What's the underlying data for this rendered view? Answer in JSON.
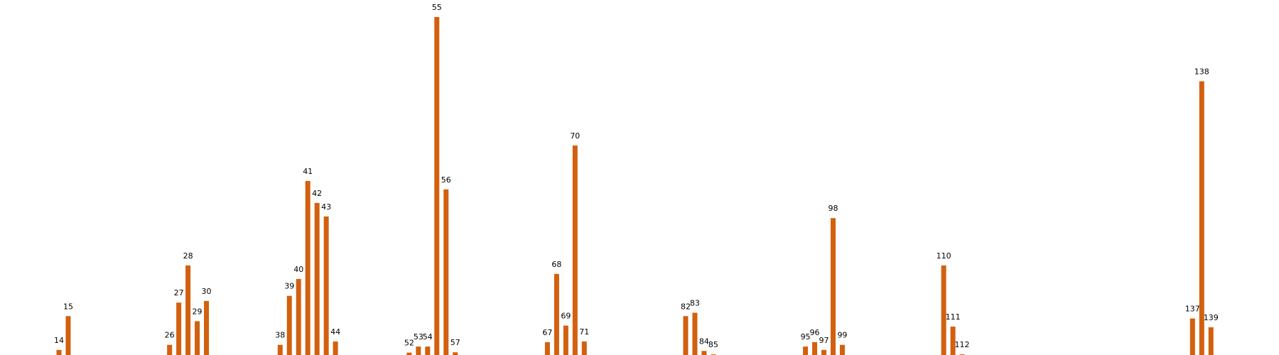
{
  "chart_data": {
    "type": "bar",
    "title": "",
    "xlabel": "",
    "ylabel": "",
    "axes_visible": false,
    "grid": false,
    "bar_color": "#d2600e",
    "ylim": [
      0,
      100
    ],
    "bars": [
      {
        "label": "14",
        "value": 1.5
      },
      {
        "label": "15",
        "value": 11.5
      },
      {
        "label": "26",
        "value": 3.0
      },
      {
        "label": "27",
        "value": 15.5
      },
      {
        "label": "28",
        "value": 26.5
      },
      {
        "label": "29",
        "value": 10.0
      },
      {
        "label": "30",
        "value": 16.0
      },
      {
        "label": "38",
        "value": 3.0
      },
      {
        "label": "39",
        "value": 17.5
      },
      {
        "label": "40",
        "value": 22.5
      },
      {
        "label": "41",
        "value": 51.5
      },
      {
        "label": "42",
        "value": 45.0
      },
      {
        "label": "43",
        "value": 41.0
      },
      {
        "label": "44",
        "value": 4.0
      },
      {
        "label": "52",
        "value": 0.7
      },
      {
        "label": "53",
        "value": 2.5
      },
      {
        "label": "54",
        "value": 2.5
      },
      {
        "label": "55",
        "value": 100.0
      },
      {
        "label": "56",
        "value": 49.0
      },
      {
        "label": "57",
        "value": 0.8
      },
      {
        "label": "67",
        "value": 3.8
      },
      {
        "label": "68",
        "value": 24.0
      },
      {
        "label": "69",
        "value": 8.7
      },
      {
        "label": "70",
        "value": 62.0
      },
      {
        "label": "71",
        "value": 4.0
      },
      {
        "label": "82",
        "value": 11.5
      },
      {
        "label": "83",
        "value": 12.5
      },
      {
        "label": "84",
        "value": 1.2
      },
      {
        "label": "85",
        "value": 0.2
      },
      {
        "label": "95",
        "value": 2.5
      },
      {
        "label": "96",
        "value": 3.8
      },
      {
        "label": "97",
        "value": 1.5
      },
      {
        "label": "98",
        "value": 40.5
      },
      {
        "label": "99",
        "value": 3.0
      },
      {
        "label": "110",
        "value": 26.5
      },
      {
        "label": "111",
        "value": 8.4
      },
      {
        "label": "112",
        "value": 0.2
      },
      {
        "label": "137",
        "value": 10.8
      },
      {
        "label": "138",
        "value": 81.0
      },
      {
        "label": "139",
        "value": 8.2
      }
    ]
  }
}
